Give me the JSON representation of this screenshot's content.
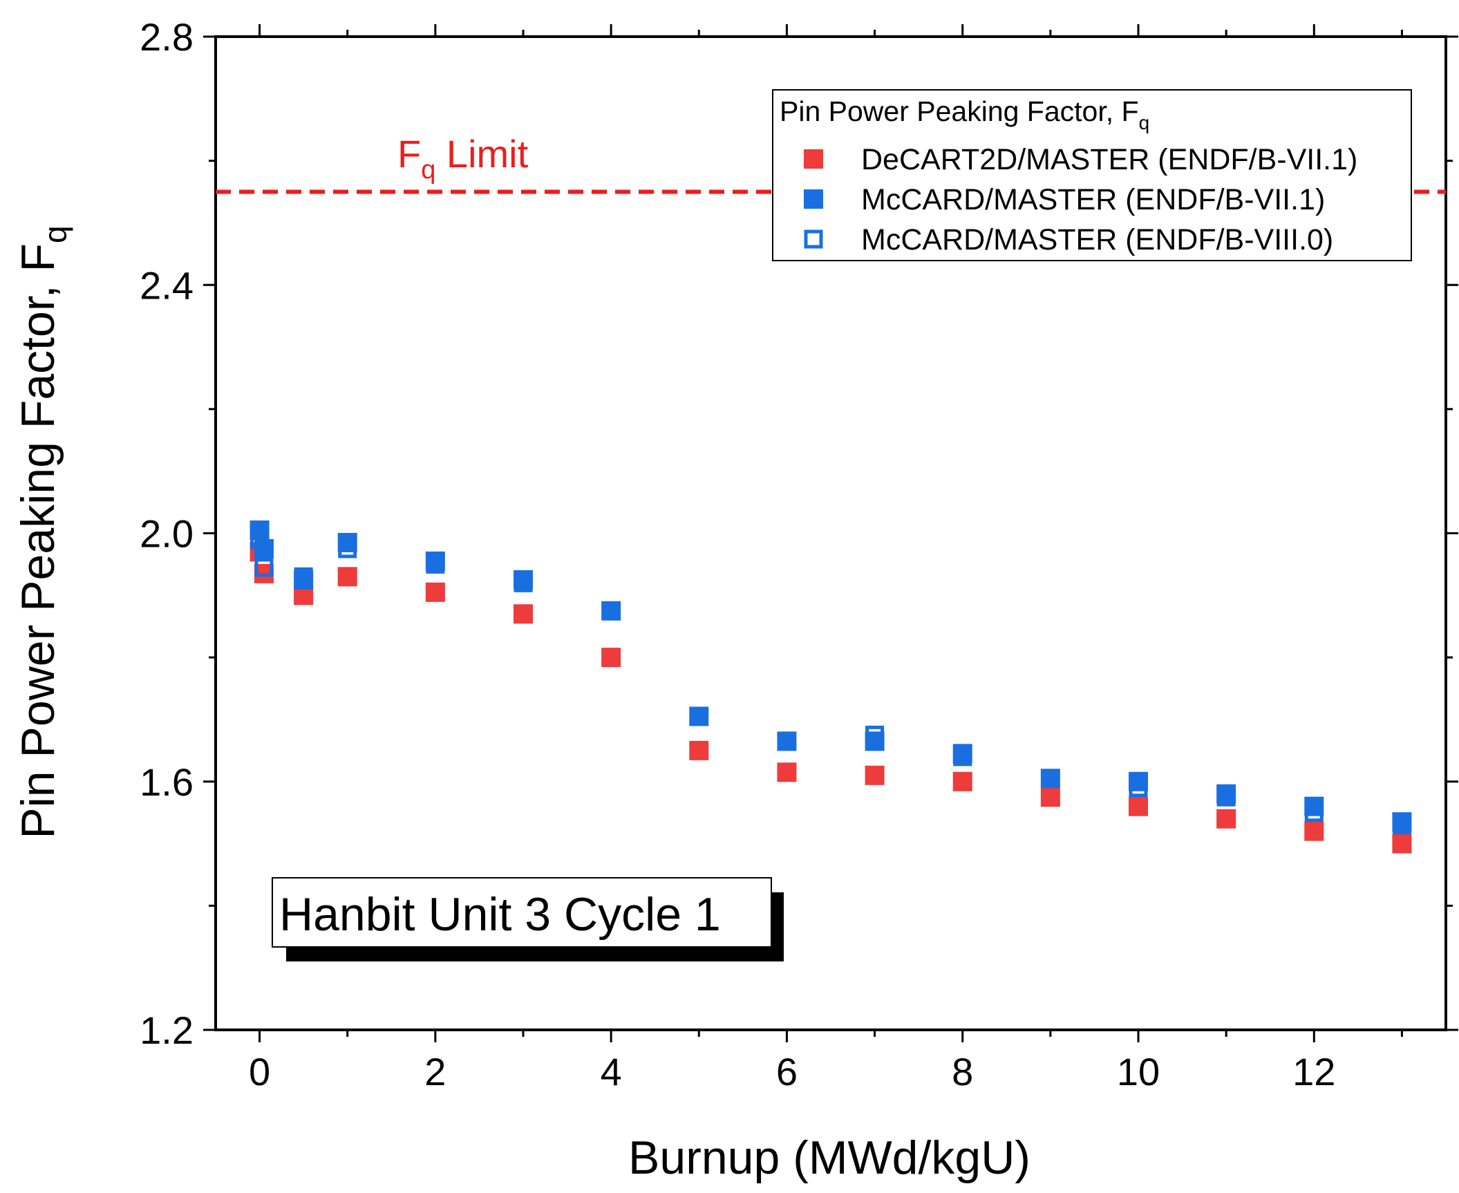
{
  "chart_data": {
    "type": "scatter",
    "title": "",
    "xlabel": "Burnup (MWd/kgU)",
    "ylabel_main": "Pin Power Peaking Factor, F",
    "ylabel_sub": "q",
    "xlim": [
      -0.5,
      13.5
    ],
    "ylim": [
      1.2,
      2.8
    ],
    "x_ticks": [
      0,
      2,
      4,
      6,
      8,
      10,
      12
    ],
    "x_tick_labels": [
      "0",
      "2",
      "4",
      "6",
      "8",
      "10",
      "12"
    ],
    "x_minor_ticks": [
      1,
      3,
      5,
      7,
      9,
      11,
      13
    ],
    "y_ticks": [
      1.2,
      1.6,
      2.0,
      2.4,
      2.8
    ],
    "y_tick_labels": [
      "1.2",
      "1.6",
      "2.0",
      "2.4",
      "2.8"
    ],
    "y_minor_ticks": [
      1.4,
      1.8,
      2.2,
      2.6
    ],
    "grid": false,
    "limit_line": {
      "y": 2.55,
      "color": "#ee1c1c",
      "label_main": "F",
      "label_sub": "q",
      "label_rest": " Limit"
    },
    "legend": {
      "position": "top-right",
      "title_main": "Pin Power Peaking Factor, F",
      "title_sub": "q"
    },
    "annotation": "Hanbit Unit 3 Cycle 1",
    "series": [
      {
        "name": "DeCART2D/MASTER (ENDF/B-VII.1)",
        "marker": "square-filled",
        "color": "#ee3b3b",
        "x": [
          0,
          0.05,
          0.5,
          1,
          2,
          3,
          4,
          5,
          6,
          7,
          8,
          9,
          10,
          11,
          12,
          13
        ],
        "y": [
          1.97,
          1.935,
          1.9,
          1.93,
          1.905,
          1.87,
          1.8,
          1.65,
          1.615,
          1.61,
          1.6,
          1.575,
          1.56,
          1.54,
          1.52,
          1.5
        ]
      },
      {
        "name": "McCARD/MASTER (ENDF/B-VII.1)",
        "marker": "square-filled",
        "color": "#1a6fe0",
        "x": [
          0,
          0.05,
          0.5,
          1,
          2,
          3,
          4,
          5,
          6,
          7,
          8,
          9,
          10,
          11,
          12,
          13
        ],
        "y": [
          2.005,
          1.975,
          1.925,
          1.985,
          1.955,
          1.925,
          1.875,
          1.705,
          1.665,
          1.665,
          1.645,
          1.605,
          1.6,
          1.58,
          1.56,
          1.535
        ]
      },
      {
        "name": "McCARD/MASTER (ENDF/B-VIII.0)",
        "marker": "square-open",
        "color": "#1a6fe0",
        "x": [
          0,
          0.05,
          0.5,
          1,
          2,
          3,
          4,
          5,
          6,
          7,
          8,
          9,
          10,
          11,
          12,
          13
        ],
        "y": [
          1.99,
          1.945,
          1.93,
          1.975,
          1.95,
          1.92,
          1.875,
          1.705,
          1.665,
          1.675,
          1.64,
          1.605,
          1.59,
          1.575,
          1.55,
          1.53
        ]
      }
    ]
  }
}
